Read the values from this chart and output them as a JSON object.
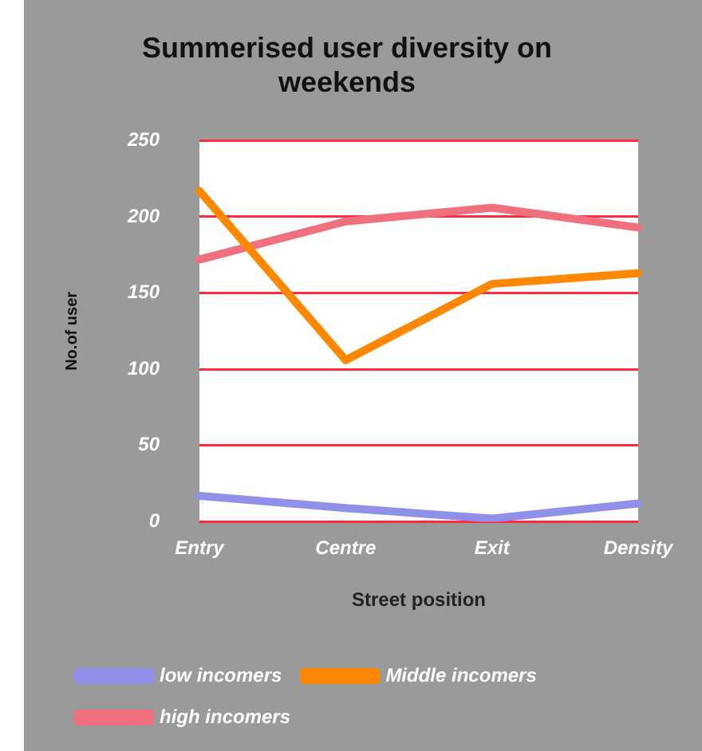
{
  "chart_data": {
    "type": "line",
    "title": "Summerised user diversity on weekends",
    "xlabel": "Street position",
    "ylabel": "No.of user",
    "categories": [
      "Entry",
      "Centre",
      "Exit",
      "Density"
    ],
    "series": [
      {
        "name": "low incomers",
        "color": "#9090e8",
        "values": [
          17,
          9,
          2,
          12
        ]
      },
      {
        "name": "Middle incomers",
        "color": "#ff8800",
        "values": [
          217,
          106,
          156,
          163
        ]
      },
      {
        "name": "high incomers",
        "color": "#f07080",
        "values": [
          172,
          197,
          206,
          193
        ]
      }
    ],
    "ylim": [
      0,
      250
    ],
    "yticks": [
      0,
      50,
      100,
      150,
      200,
      250
    ],
    "grid": "y",
    "legend": "bottom",
    "marker": "none"
  }
}
